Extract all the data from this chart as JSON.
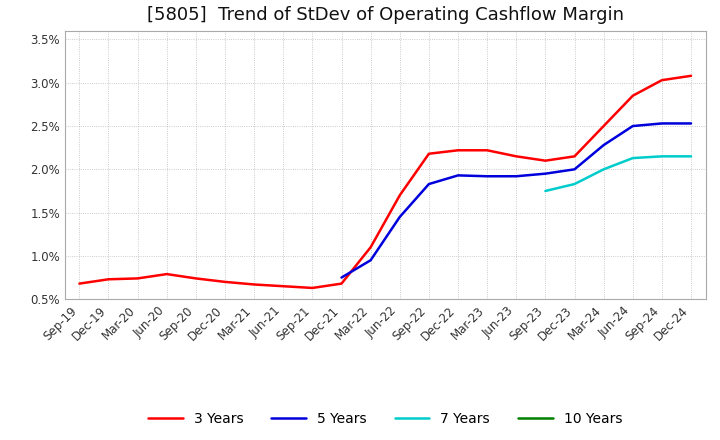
{
  "title": "[5805]  Trend of StDev of Operating Cashflow Margin",
  "ylim": [
    0.005,
    0.036
  ],
  "yticks": [
    0.005,
    0.01,
    0.015,
    0.02,
    0.025,
    0.03,
    0.035
  ],
  "ytick_labels": [
    "0.5%",
    "1.0%",
    "1.5%",
    "2.0%",
    "2.5%",
    "3.0%",
    "3.5%"
  ],
  "x_labels": [
    "Sep-19",
    "Dec-19",
    "Mar-20",
    "Jun-20",
    "Sep-20",
    "Dec-20",
    "Mar-21",
    "Jun-21",
    "Sep-21",
    "Dec-21",
    "Mar-22",
    "Jun-22",
    "Sep-22",
    "Dec-22",
    "Mar-23",
    "Jun-23",
    "Sep-23",
    "Dec-23",
    "Mar-24",
    "Jun-24",
    "Sep-24",
    "Dec-24"
  ],
  "series": {
    "3 Years": {
      "color": "#ff0000",
      "data": [
        0.0068,
        0.0073,
        0.0074,
        0.0079,
        0.0074,
        0.007,
        0.0067,
        0.0065,
        0.0063,
        0.0068,
        0.011,
        0.017,
        0.0218,
        0.0222,
        0.0222,
        0.0215,
        0.021,
        0.0215,
        0.025,
        0.0285,
        0.0303,
        0.0308
      ]
    },
    "5 Years": {
      "color": "#0000dd",
      "data": [
        null,
        null,
        null,
        null,
        null,
        null,
        null,
        null,
        null,
        0.0075,
        0.0095,
        0.0145,
        0.0183,
        0.0193,
        0.0192,
        0.0192,
        0.0195,
        0.02,
        0.0228,
        0.025,
        0.0253,
        0.0253
      ]
    },
    "7 Years": {
      "color": "#00cccc",
      "data": [
        null,
        null,
        null,
        null,
        null,
        null,
        null,
        null,
        null,
        null,
        null,
        null,
        null,
        null,
        null,
        null,
        0.0175,
        0.0183,
        0.02,
        0.0213,
        0.0215,
        0.0215
      ]
    },
    "10 Years": {
      "color": "#008000",
      "data": [
        null,
        null,
        null,
        null,
        null,
        null,
        null,
        null,
        null,
        null,
        null,
        null,
        null,
        null,
        null,
        null,
        null,
        null,
        null,
        null,
        null,
        null
      ]
    }
  },
  "legend_order": [
    "3 Years",
    "5 Years",
    "7 Years",
    "10 Years"
  ],
  "background_color": "#ffffff",
  "grid_color": "#aaaaaa",
  "title_fontsize": 13,
  "tick_fontsize": 8.5
}
